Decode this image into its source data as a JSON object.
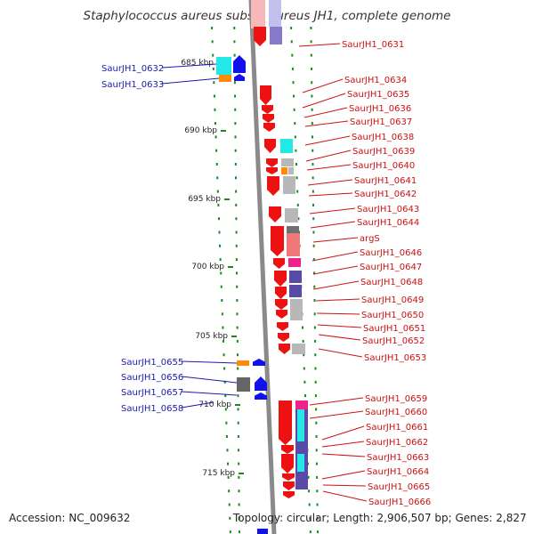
{
  "title": "Staphylococcus aureus subsp. aureus JH1, complete genome",
  "accession": "Accession: NC_009632",
  "topology": "Topology: circular; Length: 2,906,507 bp; Genes: 2,827",
  "colors": {
    "forward_label": "#1a1aaa",
    "reverse_label": "#cc1111",
    "gene_red": "#ee1111",
    "gene_blue": "#1111ee",
    "cyan": "#22e8e8",
    "orange": "#ff8c00",
    "purple": "#5a4aa8",
    "gray": "#b8b8b8",
    "pink": "#f07878",
    "magenta": "#ee2288",
    "ruler_green": "#1a8a1a"
  },
  "ruler": {
    "labels": [
      "685 kbp",
      "690 kbp",
      "695 kbp",
      "700 kbp",
      "705 kbp",
      "710 kbp",
      "715 kbp"
    ]
  },
  "forward_genes": [
    "SaurJH1_0632",
    "SaurJH1_0633",
    "SaurJH1_0655",
    "SaurJH1_0656",
    "SaurJH1_0657",
    "SaurJH1_0658"
  ],
  "reverse_genes": [
    "SaurJH1_0631",
    "SaurJH1_0634",
    "SaurJH1_0635",
    "SaurJH1_0636",
    "SaurJH1_0637",
    "SaurJH1_0638",
    "SaurJH1_0639",
    "SaurJH1_0640",
    "SaurJH1_0641",
    "SaurJH1_0642",
    "SaurJH1_0643",
    "SaurJH1_0644",
    "argS",
    "SaurJH1_0646",
    "SaurJH1_0647",
    "SaurJH1_0648",
    "SaurJH1_0649",
    "SaurJH1_0650",
    "SaurJH1_0651",
    "SaurJH1_0652",
    "SaurJH1_0653",
    "SaurJH1_0659",
    "SaurJH1_0660",
    "SaurJH1_0661",
    "SaurJH1_0662",
    "SaurJH1_0663",
    "SaurJH1_0664",
    "SaurJH1_0665",
    "SaurJH1_0666"
  ]
}
